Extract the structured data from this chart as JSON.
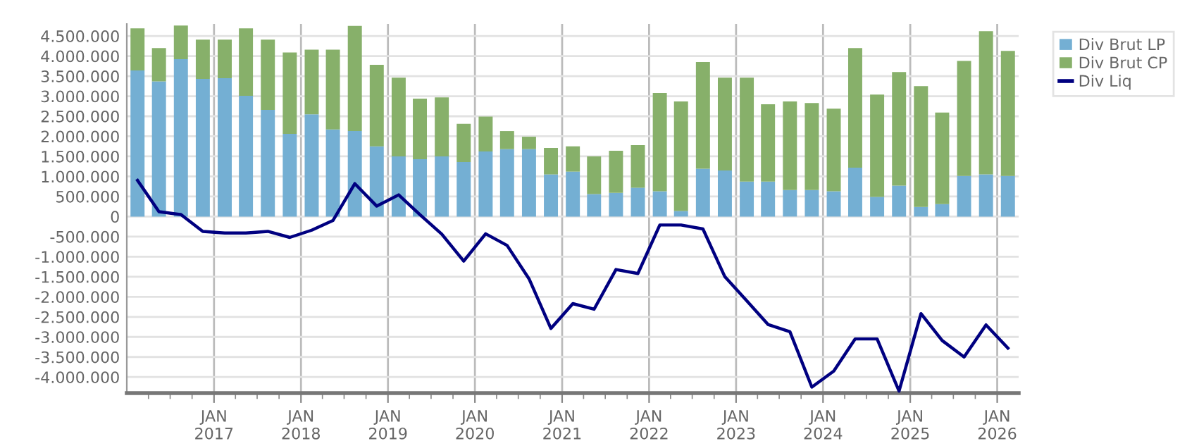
{
  "chart_data": {
    "type": "bar",
    "stacked": true,
    "x": [
      "2016-02-15",
      "2016-05-15",
      "2016-08-15",
      "2016-11-15",
      "2017-02-15",
      "2017-05-15",
      "2017-08-15",
      "2017-11-15",
      "2018-02-15",
      "2018-05-15",
      "2018-08-15",
      "2018-11-15",
      "2019-02-15",
      "2019-05-15",
      "2019-08-15",
      "2019-11-15",
      "2020-02-15",
      "2020-05-15",
      "2020-08-15",
      "2020-11-15",
      "2021-02-15",
      "2021-05-15",
      "2021-08-15",
      "2021-11-15",
      "2022-02-15",
      "2022-05-15",
      "2022-08-15",
      "2022-11-15",
      "2023-02-15",
      "2023-05-15",
      "2023-08-15",
      "2023-11-15",
      "2024-02-15",
      "2024-05-15",
      "2024-08-15",
      "2024-11-15",
      "2025-02-15",
      "2025-05-15",
      "2025-08-15",
      "2025-11-15",
      "2026-02-15"
    ],
    "series": [
      {
        "name": "Div Brut LP",
        "color": "#74afd3",
        "values": [
          3640000,
          3370000,
          3920000,
          3430000,
          3450000,
          3010000,
          2660000,
          2060000,
          2550000,
          2170000,
          2130000,
          1750000,
          1500000,
          1430000,
          1500000,
          1360000,
          1620000,
          1680000,
          1680000,
          1050000,
          1120000,
          560000,
          590000,
          720000,
          630000,
          140000,
          1190000,
          1150000,
          870000,
          870000,
          660000,
          660000,
          630000,
          1220000,
          490000,
          770000,
          240000,
          310000,
          1010000,
          1050000,
          1010000
        ]
      },
      {
        "name": "Div Brut CP",
        "color": "#87b06a",
        "values": [
          1050000,
          830000,
          840000,
          980000,
          960000,
          1680000,
          1750000,
          2030000,
          1610000,
          1990000,
          2620000,
          2030000,
          1960000,
          1510000,
          1470000,
          950000,
          870000,
          450000,
          310000,
          660000,
          630000,
          940000,
          1050000,
          1060000,
          2450000,
          2730000,
          2660000,
          2310000,
          2590000,
          1930000,
          2210000,
          2170000,
          2060000,
          2980000,
          2550000,
          2830000,
          3010000,
          2280000,
          2870000,
          3570000,
          3120000
        ]
      },
      {
        "name": "Div Liq",
        "type": "line",
        "color": "#000080",
        "line_style": "solid",
        "values": [
          900000,
          120000,
          50000,
          -370000,
          -410000,
          -410000,
          -370000,
          -520000,
          -340000,
          -100000,
          820000,
          260000,
          540000,
          50000,
          -440000,
          -1110000,
          -430000,
          -720000,
          -1550000,
          -2790000,
          -2170000,
          -2310000,
          -1320000,
          -1420000,
          -210000,
          -210000,
          -310000,
          -1500000,
          -2100000,
          -2690000,
          -2870000,
          -4250000,
          -3850000,
          -3050000,
          -3050000,
          -4350000,
          -2420000,
          -3090000,
          -3500000,
          -2700000,
          -3280000
        ]
      }
    ],
    "xlim": [
      "2016-01-01",
      "2026-04-01"
    ],
    "xticks": [
      {
        "value": "2016-04-01",
        "label": null
      },
      {
        "value": "2016-07-01",
        "label": null
      },
      {
        "value": "2016-10-01",
        "label": null
      },
      {
        "value": "2017-01-01",
        "label": "JAN\n2017"
      },
      {
        "value": "2017-04-01",
        "label": null
      },
      {
        "value": "2017-07-01",
        "label": null
      },
      {
        "value": "2017-10-01",
        "label": null
      },
      {
        "value": "2018-01-01",
        "label": "JAN\n2018"
      },
      {
        "value": "2018-04-01",
        "label": null
      },
      {
        "value": "2018-07-01",
        "label": null
      },
      {
        "value": "2018-10-01",
        "label": null
      },
      {
        "value": "2019-01-01",
        "label": "JAN\n2019"
      },
      {
        "value": "2019-04-01",
        "label": null
      },
      {
        "value": "2019-07-01",
        "label": null
      },
      {
        "value": "2019-10-01",
        "label": null
      },
      {
        "value": "2020-01-01",
        "label": "JAN\n2020"
      },
      {
        "value": "2020-04-01",
        "label": null
      },
      {
        "value": "2020-07-01",
        "label": null
      },
      {
        "value": "2020-10-01",
        "label": null
      },
      {
        "value": "2021-01-01",
        "label": "JAN\n2021"
      },
      {
        "value": "2021-04-01",
        "label": null
      },
      {
        "value": "2021-07-01",
        "label": null
      },
      {
        "value": "2021-10-01",
        "label": null
      },
      {
        "value": "2022-01-01",
        "label": "JAN\n2022"
      },
      {
        "value": "2022-04-01",
        "label": null
      },
      {
        "value": "2022-07-01",
        "label": null
      },
      {
        "value": "2022-10-01",
        "label": null
      },
      {
        "value": "2023-01-01",
        "label": "JAN\n2023"
      },
      {
        "value": "2023-04-01",
        "label": null
      },
      {
        "value": "2023-07-01",
        "label": null
      },
      {
        "value": "2023-10-01",
        "label": null
      },
      {
        "value": "2024-01-01",
        "label": "JAN\n2024"
      },
      {
        "value": "2024-04-01",
        "label": null
      },
      {
        "value": "2024-07-01",
        "label": null
      },
      {
        "value": "2024-10-01",
        "label": null
      },
      {
        "value": "2025-01-01",
        "label": "JAN\n2025"
      },
      {
        "value": "2025-04-01",
        "label": null
      },
      {
        "value": "2025-07-01",
        "label": null
      },
      {
        "value": "2025-10-01",
        "label": null
      },
      {
        "value": "2026-01-01",
        "label": "JAN\n2026"
      }
    ],
    "ylim": [
      -4400000,
      4800000
    ],
    "yticks": [
      {
        "value": -4000000,
        "label": "-4.000.000"
      },
      {
        "value": -3500000,
        "label": "-3.500.000"
      },
      {
        "value": -3000000,
        "label": "-3.000.000"
      },
      {
        "value": -2500000,
        "label": "-2.500.000"
      },
      {
        "value": -2000000,
        "label": "-2.000.000"
      },
      {
        "value": -1500000,
        "label": "-1.500.000"
      },
      {
        "value": -1000000,
        "label": "-1.000.000"
      },
      {
        "value": -500000,
        "label": "-500.000"
      },
      0,
      {
        "value": 500000,
        "label": "500.000"
      },
      {
        "value": 1000000,
        "label": "1.000.000"
      },
      {
        "value": 1500000,
        "label": "1.500.000"
      },
      {
        "value": 2000000,
        "label": "2.000.000"
      },
      {
        "value": 2500000,
        "label": "2.500.000"
      },
      {
        "value": 3000000,
        "label": "3.000.000"
      },
      {
        "value": 3500000,
        "label": "3.500.000"
      },
      {
        "value": 4000000,
        "label": "4.000.000"
      },
      {
        "value": 4500000,
        "label": "4.500.000"
      }
    ],
    "grid": true,
    "legend": "top right",
    "marker": "none"
  }
}
